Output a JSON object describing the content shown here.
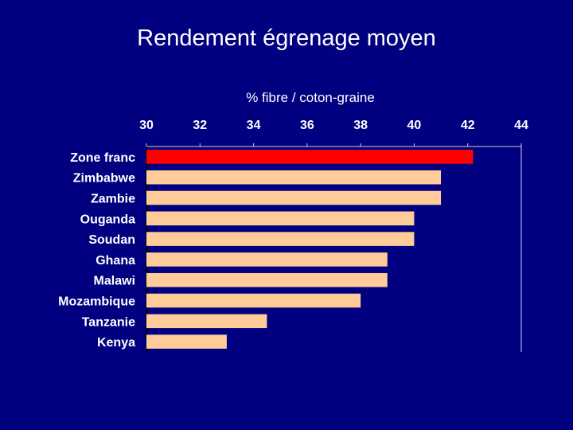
{
  "slide": {
    "title": "Rendement égrenage moyen"
  },
  "chart_data": {
    "type": "bar",
    "orientation": "horizontal",
    "axis_title": "% fibre / coton-graine",
    "axis_position": "top",
    "xlim": [
      30,
      44
    ],
    "ticks": [
      30,
      32,
      34,
      36,
      38,
      40,
      42,
      44
    ],
    "categories": [
      "Zone franc",
      "Zimbabwe",
      "Zambie",
      "Ouganda",
      "Soudan",
      "Ghana",
      "Malawi",
      "Mozambique",
      "Tanzanie",
      "Kenya"
    ],
    "values": [
      42.2,
      41.0,
      41.0,
      40.0,
      40.0,
      39.0,
      39.0,
      38.0,
      34.5,
      33.0
    ],
    "colors": {
      "highlight": "#ff0000",
      "bar": "#ffcc99",
      "plot_background": "#000080",
      "text": "#ffffff",
      "grid": "#d0d0d0"
    },
    "grid": false
  }
}
